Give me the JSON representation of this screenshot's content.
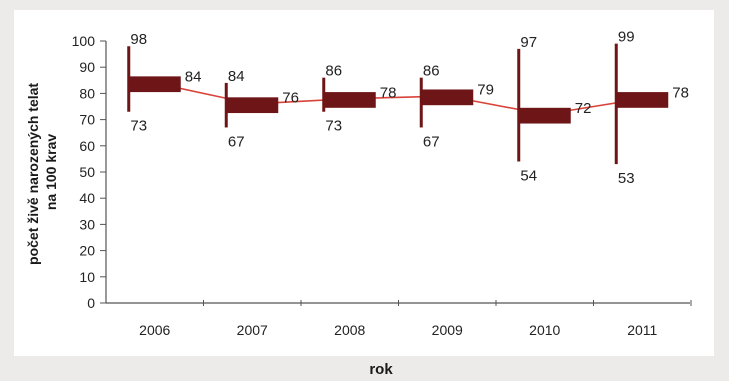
{
  "chart_data": {
    "type": "line",
    "ylabel_lines": [
      "počet živě narozených telat",
      "na 100 krav"
    ],
    "xlabel": "rok",
    "ylim": [
      0,
      100
    ],
    "yticks": [
      0,
      10,
      20,
      30,
      40,
      50,
      60,
      70,
      80,
      90,
      100
    ],
    "categories": [
      "2006",
      "2007",
      "2008",
      "2009",
      "2010",
      "2011"
    ],
    "series": [
      {
        "high": [
          98,
          84,
          86,
          86,
          97,
          99
        ],
        "low": [
          73,
          67,
          73,
          67,
          54,
          53
        ],
        "mean": [
          84,
          76,
          78,
          79,
          72,
          78
        ]
      }
    ],
    "grid": false,
    "colors": {
      "box": "#6e1517",
      "line": "#d9443a",
      "axis": "#555555",
      "plot_bg": "#ffffff"
    }
  }
}
